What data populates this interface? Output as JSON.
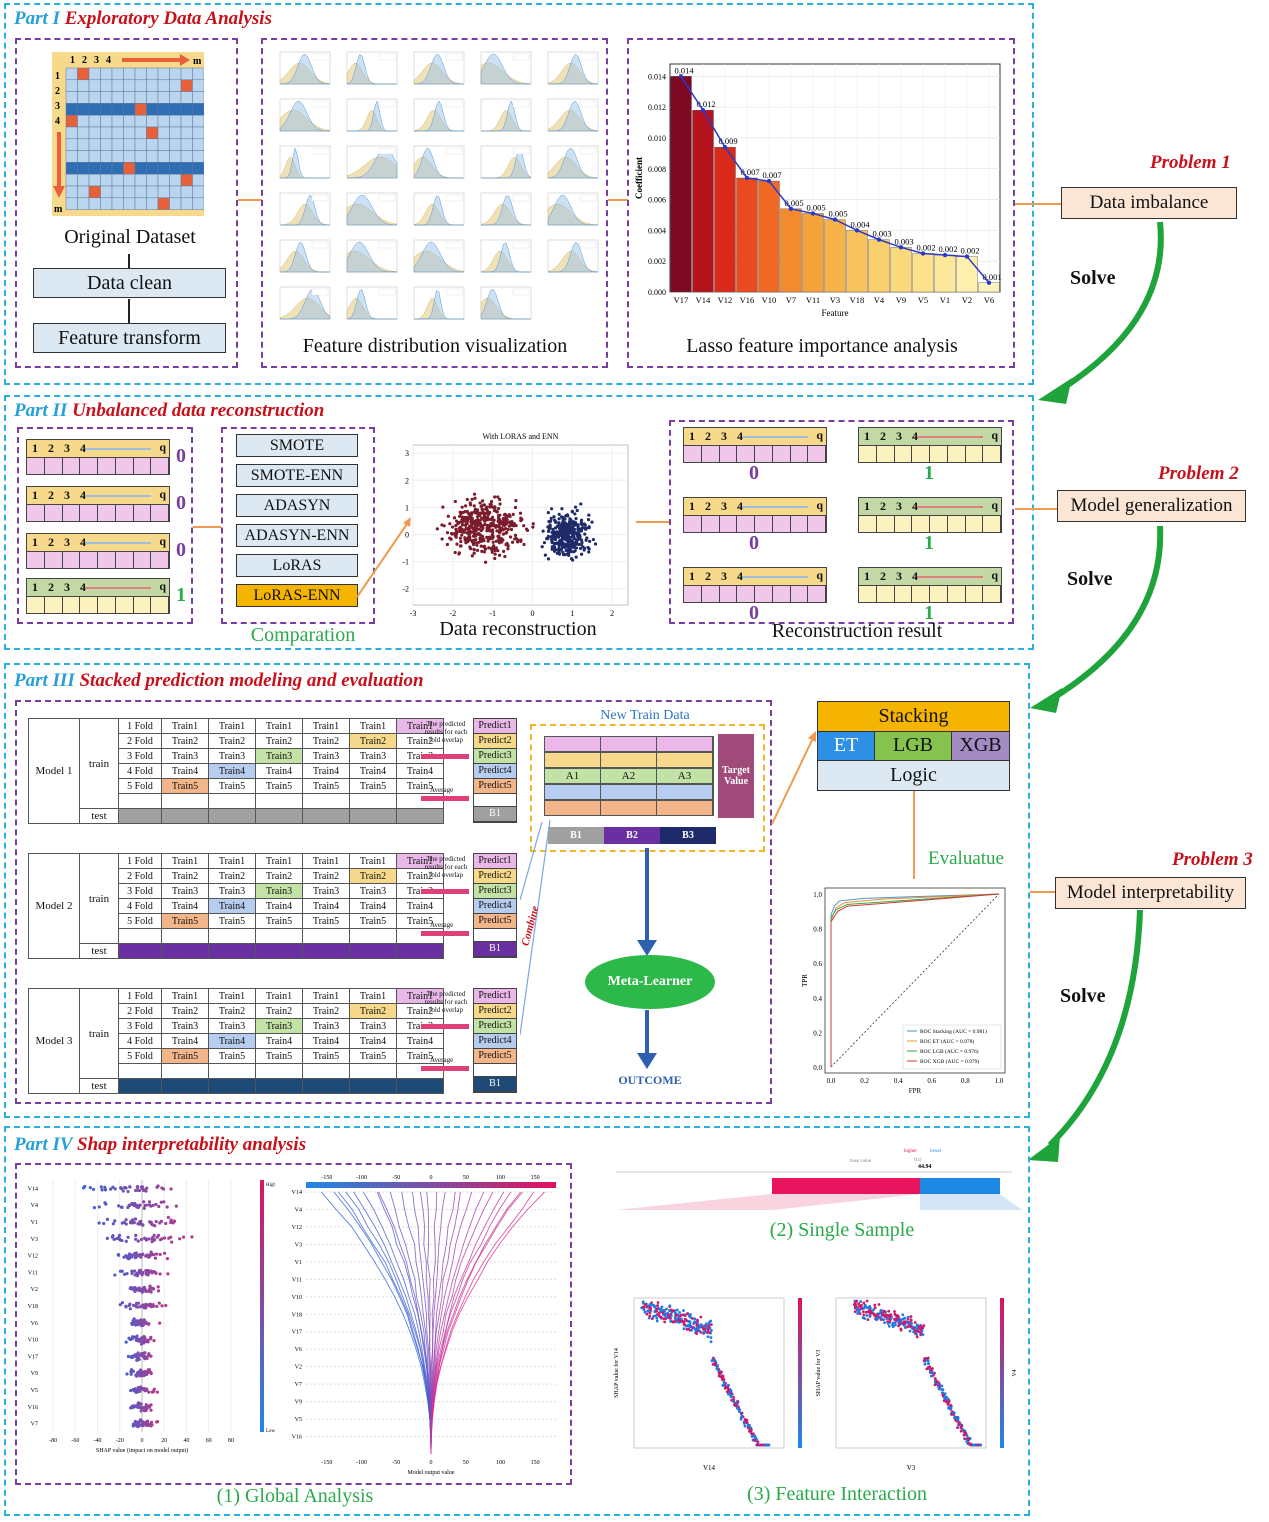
{
  "part1": {
    "num": "Part I",
    "title": "Exploratory Data Analysis",
    "matrix": {
      "cols": [
        "1",
        "2",
        "3",
        "4"
      ],
      "col_end": "m",
      "rows": [
        "1",
        "2",
        "3",
        "4"
      ],
      "row_end": "m"
    },
    "original_dataset": "Original Dataset",
    "data_clean": "Data clean",
    "feature_transform": "Feature transform",
    "feature_dist": "Feature distribution visualization",
    "lasso": "Lasso feature importance analysis"
  },
  "chart_data": {
    "type": "bar",
    "ylabel": "Coefficient",
    "xlabel": "Feature",
    "categories": [
      "V17",
      "V14",
      "V12",
      "V16",
      "V10",
      "V7",
      "V11",
      "V3",
      "V18",
      "V4",
      "V9",
      "V5",
      "V1",
      "V2",
      "V6"
    ],
    "values": [
      0.014,
      0.0118,
      0.0094,
      0.0074,
      0.0072,
      0.0054,
      0.0051,
      0.0047,
      0.004,
      0.0034,
      0.0029,
      0.0025,
      0.0024,
      0.0023,
      0.0006
    ],
    "data_labels": [
      "0.014",
      "0.012",
      "0.009",
      "0.007",
      "0.007",
      "0.005",
      "0.005",
      "0.005",
      "0.004",
      "0.003",
      "0.003",
      "0.002",
      "0.002",
      "0.002",
      "0.001"
    ],
    "yticks": [
      "0.000",
      "0.002",
      "0.004",
      "0.006",
      "0.008",
      "0.010",
      "0.012",
      "0.014"
    ],
    "ylim": [
      0,
      0.0148
    ],
    "colors": [
      "#7d0a22",
      "#b5121d",
      "#d92a1c",
      "#ea4a1f",
      "#f06a25",
      "#f48a2e",
      "#f6a23b",
      "#f7b34a",
      "#f8c35c",
      "#f9cf6d",
      "#fad87c",
      "#fbe18c",
      "#fce89b",
      "#fdefad",
      "#fdf3bd"
    ]
  },
  "problems": [
    {
      "label": "Problem 1",
      "box": "Data imbalance"
    },
    {
      "label": "Problem 2",
      "box": "Model generalization"
    },
    {
      "label": "Problem 3",
      "box": "Model interpretability"
    }
  ],
  "solve": "Solve",
  "part2": {
    "num": "Part II",
    "title": "Unbalanced data reconstruction",
    "seq_labels": [
      "1",
      "2",
      "3",
      "4"
    ],
    "seq_end": "q",
    "classes": [
      "0",
      "0",
      "0",
      "1"
    ],
    "methods": [
      "SMOTE",
      "SMOTE-ENN",
      "ADASYN",
      "ADASYN-ENN",
      "LoRAS",
      "LoRAS-ENN"
    ],
    "comparation": "Comparation",
    "scatter_title": "With LORAS and ENN",
    "scatter_xticks": [
      "-3",
      "-2",
      "-1",
      "0",
      "1",
      "2"
    ],
    "scatter_yticks": [
      "3",
      "2",
      "1",
      "0",
      "-1",
      "-2"
    ],
    "data_reconstruction": "Data reconstruction",
    "result_classes": [
      "0",
      "1",
      "0",
      "1",
      "0",
      "1"
    ],
    "reconstruction_result": "Reconstruction result"
  },
  "part3": {
    "num": "Part III",
    "title": "Stacked prediction modeling and evaluation",
    "models": [
      "Model 1",
      "Model 2",
      "Model 3"
    ],
    "train": "train",
    "test": "test",
    "folds": [
      "1 Fold",
      "2 Fold",
      "3 Fold",
      "4 Fold",
      "5 Fold"
    ],
    "trains": [
      "Train1",
      "Train2",
      "Train3",
      "Train4",
      "Train5"
    ],
    "predicts": [
      "Predict1",
      "Predict2",
      "Predict3",
      "Predict4",
      "Predict5"
    ],
    "overlap": "The predicted results for each fold overlap",
    "average": "Average",
    "b1": "B1",
    "new_train": "New Train Data",
    "a_labels": [
      "A1",
      "A2",
      "A3"
    ],
    "target": "Target Value",
    "b_labels": [
      "B1",
      "B2",
      "B3"
    ],
    "combine": "Combine",
    "meta": "Meta-Learner",
    "outcome": "OUTCOME",
    "stacking": "Stacking",
    "base": [
      "ET",
      "LGB",
      "XGB"
    ],
    "logic": "Logic",
    "evaluate": "Evaluatue",
    "roc": {
      "xlabel": "FPR",
      "ylabel": "TPR",
      "ticks": [
        "0.0",
        "0.2",
        "0.4",
        "0.6",
        "0.8",
        "1.0"
      ],
      "legend": [
        "ROC Stacking (AUC = 0.981)",
        "ROC ET (AUC = 0.978)",
        "ROC LGB (AUC = 0.976)",
        "ROC XGB (AUC = 0.979)"
      ],
      "colors": [
        "#4f8fd0",
        "#f0922d",
        "#3aa54a",
        "#d23a3a"
      ]
    }
  },
  "part4": {
    "num": "Part IV",
    "title": "Shap interpretability analysis",
    "beeswarm_features": [
      "V14",
      "V4",
      "V1",
      "V3",
      "V12",
      "V11",
      "V2",
      "V18",
      "V6",
      "V10",
      "V17",
      "V9",
      "V5",
      "V16",
      "V7"
    ],
    "beeswarm_xticks": [
      "-80",
      "-60",
      "-40",
      "-20",
      "0",
      "20",
      "40",
      "60",
      "80"
    ],
    "beeswarm_xlabel": "SHAP value (impact on model output)",
    "high": "High",
    "low": "Low",
    "feature_value": "Feature value",
    "decision_features": [
      "V14",
      "V4",
      "V12",
      "V3",
      "V1",
      "V11",
      "V10",
      "V18",
      "V17",
      "V6",
      "V2",
      "V7",
      "V9",
      "V5",
      "V16"
    ],
    "decision_xticks": [
      "-150",
      "-100",
      "-50",
      "0",
      "50",
      "100",
      "150"
    ],
    "decision_xlabel": "Model output value",
    "global": "(1) Global Analysis",
    "single": "(2) Single Sample",
    "interaction": "(3) Feature Interaction",
    "dep1": {
      "x": "V14",
      "y": "SHAP value for V14",
      "c": "V1"
    },
    "dep2": {
      "x": "V3",
      "y": "SHAP value for V3",
      "c": "V4"
    },
    "force": {
      "higher": "higher",
      "lower": "lower",
      "base": "base value",
      "fx": "f(x)",
      "value": "44.94"
    }
  }
}
